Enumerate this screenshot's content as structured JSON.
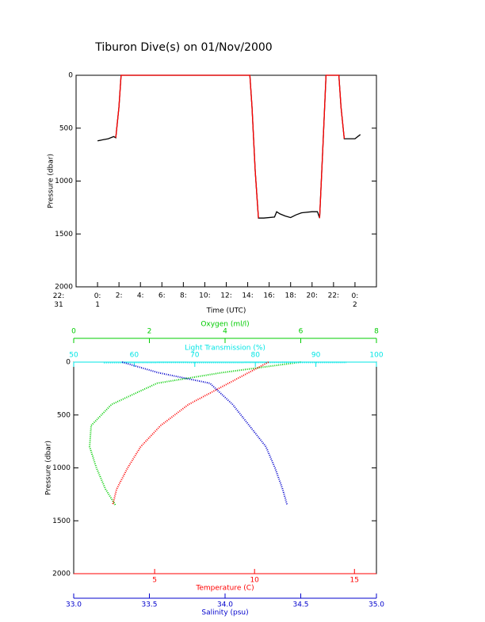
{
  "chart_data": [
    {
      "type": "line",
      "title": "Tiburon Dive(s) on 01/Nov/2000",
      "xlabel": "Time (UTC)",
      "ylabel": "Pressure (dbar)",
      "xlim": [
        -2,
        26
      ],
      "xticks": [
        {
          "value": -2,
          "label": "22:\n31"
        },
        {
          "value": 0,
          "label": "0:\n1"
        },
        {
          "value": 2,
          "label": "2:"
        },
        {
          "value": 4,
          "label": "4:"
        },
        {
          "value": 6,
          "label": "6:"
        },
        {
          "value": 8,
          "label": "8:"
        },
        {
          "value": 10,
          "label": "10:"
        },
        {
          "value": 12,
          "label": "12:"
        },
        {
          "value": 14,
          "label": "14:"
        },
        {
          "value": 16,
          "label": "16:"
        },
        {
          "value": 18,
          "label": "18:"
        },
        {
          "value": 20,
          "label": "20:"
        },
        {
          "value": 22,
          "label": "22:"
        },
        {
          "value": 24,
          "label": "0:\n2"
        }
      ],
      "ylim": [
        0,
        2000
      ],
      "y_reversed": true,
      "yticks": [
        0,
        500,
        1000,
        1500,
        2000
      ],
      "x": [
        0,
        0.5,
        1,
        1.5,
        1.7,
        2.0,
        2.2,
        8,
        14.2,
        14.4,
        14.7,
        15.0,
        15.5,
        16.5,
        16.7,
        17,
        17.5,
        18,
        18.5,
        19,
        20,
        20.5,
        20.7,
        21.0,
        21.3,
        22.5,
        22.7,
        23,
        24,
        24.5
      ],
      "series": [
        {
          "color": "#000000",
          "values": [
            620,
            610,
            600,
            580,
            590,
            300,
            0,
            0,
            0,
            300,
            900,
            1350,
            1350,
            1340,
            1290,
            1310,
            1330,
            1345,
            1320,
            1300,
            1290,
            1290,
            1350,
            700,
            0,
            0,
            300,
            600,
            600,
            560
          ]
        },
        {
          "color": "#ff0000",
          "values": [
            null,
            null,
            null,
            null,
            590,
            300,
            0,
            0,
            0,
            300,
            900,
            1350,
            null,
            null,
            null,
            null,
            null,
            null,
            null,
            null,
            null,
            null,
            1350,
            700,
            0,
            0,
            300,
            600,
            null,
            null
          ]
        }
      ]
    },
    {
      "type": "scatter",
      "ylabel": "Pressure (dbar)",
      "ylim": [
        0,
        2000
      ],
      "y_reversed": true,
      "yticks": [
        0,
        500,
        1000,
        1500,
        2000
      ],
      "x_axes": [
        {
          "label": "Oxygen (ml/l)",
          "color": "#00cc00",
          "position": "top",
          "lim": [
            0,
            8
          ],
          "ticks": [
            0,
            2,
            4,
            6,
            8
          ]
        },
        {
          "label": "Light Transmission (%)",
          "color": "#00e5e5",
          "position": "top",
          "lim": [
            50,
            100
          ],
          "ticks": [
            50,
            60,
            70,
            80,
            90,
            100
          ]
        },
        {
          "label": "Temperature (C)",
          "color": "#ff0000",
          "position": "bottom",
          "lim": [
            0.95,
            16.1
          ],
          "ticks": [
            5,
            10,
            15
          ]
        },
        {
          "label": "Salinity (psu)",
          "color": "#0000cc",
          "position": "bottom",
          "lim": [
            33,
            35
          ],
          "ticks": [
            {
              "value": 33,
              "label": "33.0"
            },
            33.5,
            {
              "value": 34,
              "label": "34.0"
            },
            34.5,
            {
              "value": 35,
              "label": "35.0"
            }
          ]
        }
      ],
      "series": [
        {
          "xaxis": 0,
          "color": "#00cc00",
          "x": [
            6.0,
            3.9,
            2.2,
            1.0,
            0.46,
            0.42,
            0.6,
            0.84,
            1.1
          ],
          "values": [
            0,
            100,
            200,
            400,
            600,
            800,
            1000,
            1200,
            1350
          ]
        },
        {
          "xaxis": 1,
          "color": "#00e5e5",
          "x": [
            55,
            65,
            75,
            85,
            95
          ],
          "values": [
            5,
            3,
            4,
            2,
            3
          ]
        },
        {
          "xaxis": 2,
          "color": "#ff0000",
          "x": [
            10.7,
            8.7,
            6.7,
            5.3,
            4.3,
            3.65,
            3.1,
            2.9
          ],
          "values": [
            0,
            200,
            400,
            600,
            800,
            1000,
            1200,
            1350
          ]
        },
        {
          "xaxis": 3,
          "color": "#0000cc",
          "x": [
            33.32,
            33.56,
            33.9,
            34.05,
            34.16,
            34.27,
            34.33,
            34.38,
            34.41
          ],
          "values": [
            0,
            100,
            200,
            400,
            600,
            800,
            1000,
            1200,
            1350
          ]
        }
      ]
    }
  ]
}
